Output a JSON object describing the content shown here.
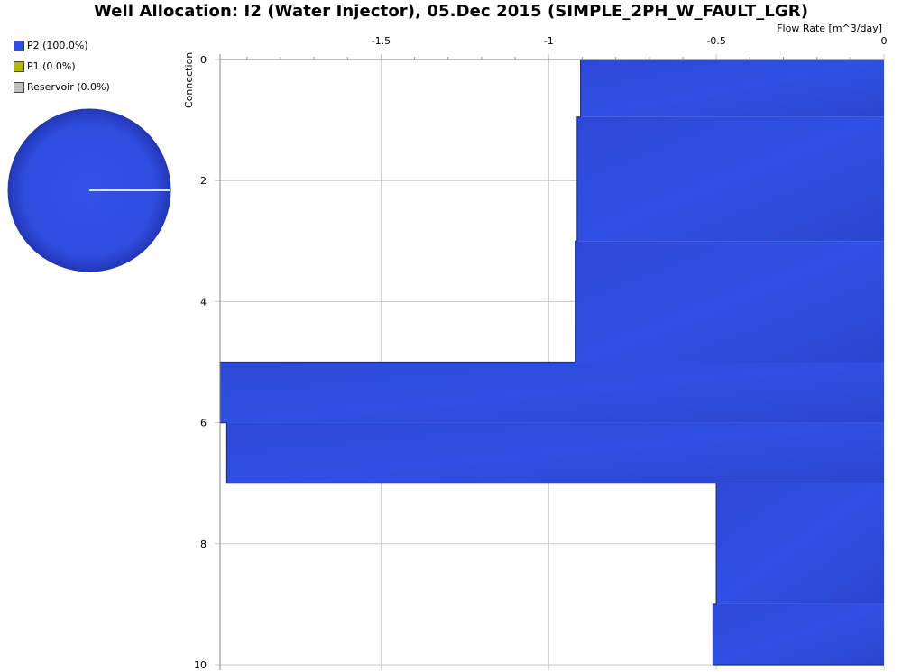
{
  "title": "Well Allocation: I2 (Water Injector), 05.Dec 2015 (SIMPLE_2PH_W_FAULT_LGR)",
  "legend": [
    {
      "label": "P2 (100.0%)",
      "color": "#2e4fe0"
    },
    {
      "label": "P1 (0.0%)",
      "color": "#b5b800"
    },
    {
      "label": "Reservoir (0.0%)",
      "color": "#c0c0c0"
    }
  ],
  "pie": {
    "slices": [
      {
        "name": "P2",
        "percent": 100.0,
        "color": "#2e4fe0"
      }
    ]
  },
  "chart_data": {
    "type": "area",
    "xlabel": "Flow Rate [m^3/day]",
    "ylabel": "Connection",
    "xlim": [
      -1.98,
      0
    ],
    "ylim": [
      0,
      10
    ],
    "x_ticks": [
      -1.5,
      -1,
      -0.5,
      0
    ],
    "y_ticks": [
      0,
      2,
      4,
      6,
      8,
      10
    ],
    "grid": true,
    "series": [
      {
        "name": "P2",
        "color": "#2e4fe0",
        "steps": [
          {
            "from": 0,
            "to": 0.95,
            "value": -0.905
          },
          {
            "from": 0.95,
            "to": 3.0,
            "value": -0.915
          },
          {
            "from": 3.0,
            "to": 5.0,
            "value": -0.92
          },
          {
            "from": 5.0,
            "to": 6.0,
            "value": -1.98
          },
          {
            "from": 6.0,
            "to": 7.0,
            "value": -1.96
          },
          {
            "from": 7.0,
            "to": 9.0,
            "value": -0.5
          },
          {
            "from": 9.0,
            "to": 10.0,
            "value": -0.51
          }
        ]
      }
    ]
  }
}
